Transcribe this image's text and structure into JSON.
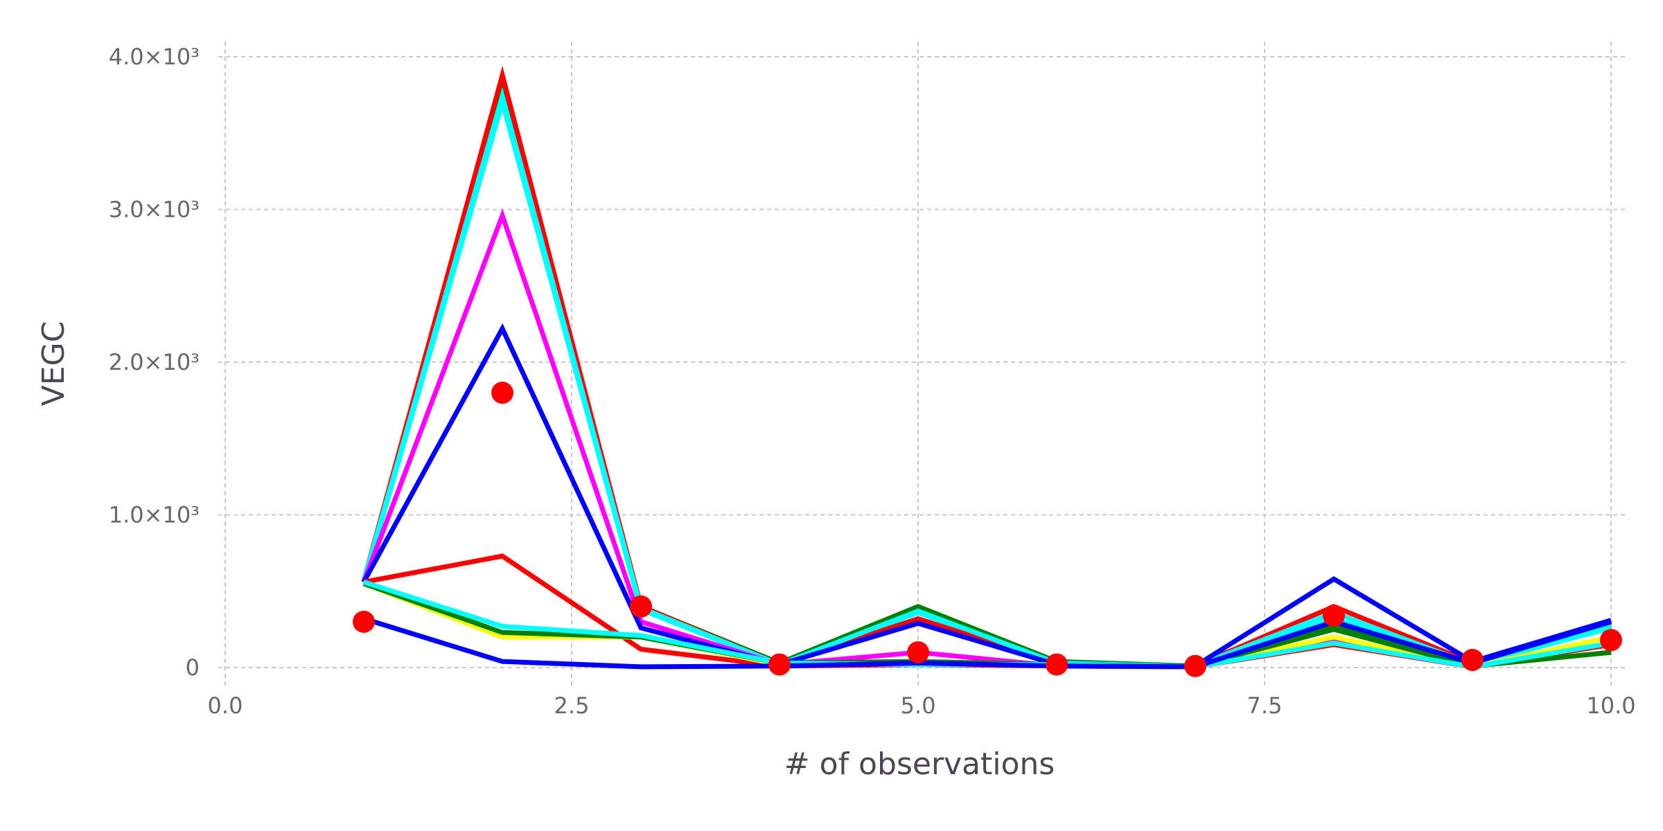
{
  "chart_data": {
    "type": "line",
    "xlabel": "# of observations",
    "ylabel": "VEGC",
    "xlim": [
      0,
      10
    ],
    "ylim": [
      -100,
      4100
    ],
    "grid": true,
    "x_ticks": [
      {
        "value": 0,
        "label": "0.0"
      },
      {
        "value": 2.5,
        "label": "2.5"
      },
      {
        "value": 5,
        "label": "5.0"
      },
      {
        "value": 7.5,
        "label": "7.5"
      },
      {
        "value": 10,
        "label": "10.0"
      }
    ],
    "y_ticks": [
      {
        "value": 0,
        "label": "0"
      },
      {
        "value": 1000,
        "label": "1.0×10³"
      },
      {
        "value": 2000,
        "label": "2.0×10³"
      },
      {
        "value": 3000,
        "label": "3.0×10³"
      },
      {
        "value": 4000,
        "label": "4.0×10³"
      }
    ],
    "x": [
      1,
      2,
      3,
      4,
      5,
      6,
      7,
      8,
      9,
      10
    ],
    "series": [
      {
        "color": "#00ffff",
        "values": [
          560,
          3700,
          380,
          20,
          360,
          30,
          10,
          320,
          20,
          260
        ]
      },
      {
        "color": "#008000",
        "values": [
          560,
          3860,
          400,
          30,
          400,
          40,
          10,
          280,
          10,
          100
        ]
      },
      {
        "color": "#ff0000",
        "values": [
          570,
          3880,
          400,
          20,
          320,
          30,
          10,
          400,
          30,
          280
        ]
      },
      {
        "color": "#00ffff",
        "values": [
          570,
          3740,
          390,
          20,
          370,
          30,
          10,
          360,
          20,
          270
        ]
      },
      {
        "color": "#ff00ff",
        "values": [
          560,
          2960,
          300,
          20,
          100,
          10,
          5,
          170,
          5,
          150
        ]
      },
      {
        "color": "#0000ff",
        "values": [
          560,
          2220,
          260,
          20,
          290,
          20,
          10,
          580,
          40,
          310
        ]
      },
      {
        "color": "#ff0000",
        "values": [
          560,
          730,
          120,
          10,
          20,
          10,
          5,
          150,
          5,
          150
        ]
      },
      {
        "color": "#ffff00",
        "values": [
          550,
          200,
          200,
          20,
          30,
          10,
          5,
          200,
          5,
          200
        ]
      },
      {
        "color": "#008000",
        "values": [
          550,
          230,
          200,
          30,
          40,
          20,
          10,
          250,
          10,
          100
        ]
      },
      {
        "color": "#00ffff",
        "values": [
          560,
          270,
          210,
          30,
          20,
          20,
          5,
          160,
          5,
          160
        ]
      },
      {
        "color": "#0000ff",
        "values": [
          320,
          40,
          5,
          10,
          30,
          10,
          5,
          300,
          30,
          300
        ]
      }
    ],
    "observations": {
      "color": "#ff0000",
      "x": [
        1,
        2,
        3,
        4,
        5,
        6,
        7,
        8,
        9,
        10
      ],
      "y": [
        300,
        1800,
        400,
        20,
        100,
        20,
        10,
        340,
        50,
        180
      ]
    }
  }
}
